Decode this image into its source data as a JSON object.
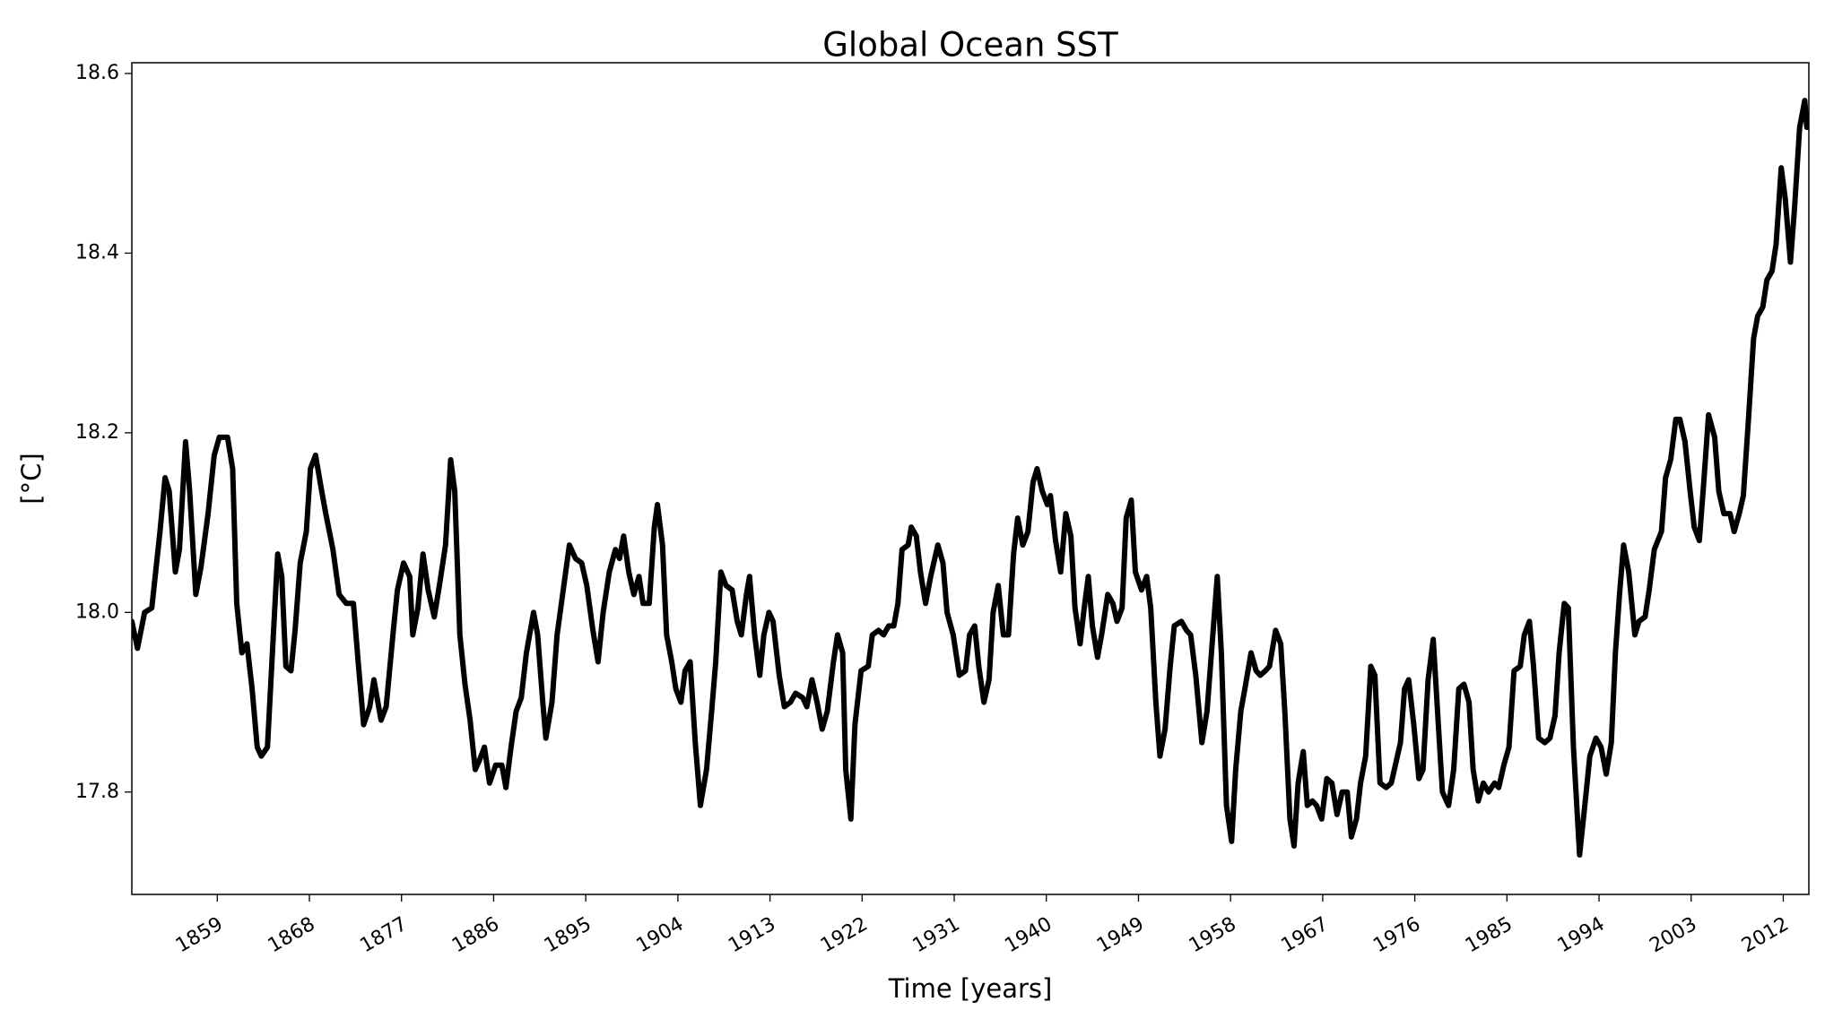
{
  "chart_data": {
    "type": "line",
    "title": "Global Ocean SST",
    "xlabel": "Time [years]",
    "ylabel": "[°C]",
    "color": "#000000",
    "xlim": [
      1850.65,
      2014.5
    ],
    "ylim": [
      17.686,
      18.612
    ],
    "xticks": [
      1859,
      1868,
      1877,
      1886,
      1895,
      1904,
      1913,
      1922,
      1931,
      1940,
      1949,
      1958,
      1967,
      1976,
      1985,
      1994,
      2003,
      2012
    ],
    "yticks": [
      17.8,
      {
        "value": 18,
        "label": "18.0"
      },
      18.2,
      18.4,
      18.6
    ],
    "x": [
      1850.65,
      1851.2,
      1851.9,
      1852.6,
      1853.4,
      1853.9,
      1854.3,
      1854.9,
      1855.3,
      1855.9,
      1856.3,
      1856.9,
      1857.4,
      1858.1,
      1858.7,
      1859.2,
      1860.0,
      1860.5,
      1860.9,
      1861.4,
      1861.9,
      1862.4,
      1862.9,
      1863.3,
      1863.9,
      1864.5,
      1864.9,
      1865.3,
      1865.7,
      1866.2,
      1866.6,
      1867.1,
      1867.7,
      1868.1,
      1868.6,
      1869.2,
      1869.6,
      1870.3,
      1870.9,
      1871.6,
      1872.3,
      1872.8,
      1873.3,
      1873.9,
      1874.3,
      1875.0,
      1875.5,
      1876.2,
      1876.6,
      1877.2,
      1877.8,
      1878.1,
      1878.6,
      1879.1,
      1879.6,
      1880.2,
      1880.7,
      1881.3,
      1881.8,
      1882.2,
      1882.7,
      1883.2,
      1883.7,
      1884.2,
      1884.6,
      1885.1,
      1885.6,
      1886.2,
      1886.8,
      1887.2,
      1887.7,
      1888.2,
      1888.7,
      1889.2,
      1889.9,
      1890.3,
      1890.8,
      1891.1,
      1891.7,
      1892.2,
      1892.8,
      1893.4,
      1894.0,
      1894.6,
      1895.1,
      1895.7,
      1896.2,
      1896.7,
      1897.3,
      1897.9,
      1898.3,
      1898.7,
      1899.2,
      1899.7,
      1900.2,
      1900.6,
      1901.2,
      1901.7,
      1902.0,
      1902.5,
      1902.9,
      1903.4,
      1903.8,
      1904.3,
      1904.7,
      1905.2,
      1905.7,
      1906.2,
      1906.8,
      1907.3,
      1907.7,
      1908.2,
      1908.7,
      1909.3,
      1909.8,
      1910.2,
      1910.7,
      1911.0,
      1911.5,
      1912.0,
      1912.4,
      1912.9,
      1913.3,
      1913.9,
      1914.4,
      1915.0,
      1915.5,
      1916.2,
      1916.6,
      1917.1,
      1917.6,
      1918.1,
      1918.6,
      1919.2,
      1919.6,
      1920.1,
      1920.4,
      1920.9,
      1921.3,
      1921.9,
      1922.6,
      1923.0,
      1923.6,
      1924.1,
      1924.6,
      1925.1,
      1925.5,
      1925.9,
      1926.5,
      1926.8,
      1927.3,
      1927.7,
      1928.2,
      1928.7,
      1929.4,
      1929.9,
      1930.3,
      1930.9,
      1931.5,
      1932.1,
      1932.5,
      1933.0,
      1933.4,
      1933.9,
      1934.4,
      1934.8,
      1935.3,
      1935.8,
      1936.3,
      1936.8,
      1937.2,
      1937.7,
      1938.2,
      1938.7,
      1939.1,
      1939.6,
      1940.1,
      1940.4,
      1940.9,
      1941.4,
      1941.9,
      1942.4,
      1942.8,
      1943.3,
      1943.7,
      1944.1,
      1944.5,
      1945.0,
      1945.4,
      1946.0,
      1946.5,
      1946.9,
      1947.4,
      1947.8,
      1948.3,
      1948.7,
      1949.3,
      1949.8,
      1950.2,
      1950.7,
      1951.1,
      1951.6,
      1952.1,
      1952.5,
      1953.2,
      1953.7,
      1954.1,
      1954.6,
      1955.2,
      1955.7,
      1956.2,
      1956.7,
      1957.1,
      1957.6,
      1958.1,
      1958.5,
      1959.0,
      1959.4,
      1960.0,
      1960.5,
      1960.9,
      1961.4,
      1961.8,
      1962.4,
      1962.9,
      1963.3,
      1963.8,
      1964.2,
      1964.6,
      1965.1,
      1965.5,
      1966.0,
      1966.4,
      1966.9,
      1967.4,
      1967.9,
      1968.4,
      1968.9,
      1969.4,
      1969.8,
      1970.3,
      1970.7,
      1971.2,
      1971.7,
      1972.1,
      1972.6,
      1973.2,
      1973.7,
      1974.2,
      1974.6,
      1975.0,
      1975.4,
      1975.9,
      1976.4,
      1976.8,
      1977.3,
      1977.8,
      1978.3,
      1978.7,
      1979.3,
      1979.8,
      1980.3,
      1980.8,
      1981.3,
      1981.7,
      1982.2,
      1982.7,
      1983.2,
      1983.8,
      1984.2,
      1984.7,
      1985.2,
      1985.7,
      1986.3,
      1986.7,
      1987.2,
      1987.6,
      1988.1,
      1988.7,
      1989.2,
      1989.7,
      1990.1,
      1990.6,
      1991.0,
      1991.5,
      1992.1,
      1992.7,
      1993.1,
      1993.7,
      1994.2,
      1994.7,
      1995.2,
      1995.6,
      1996.0,
      1996.4,
      1996.9,
      1997.5,
      1997.9,
      1998.5,
      1998.9,
      1999.4,
      2000.1,
      2000.5,
      2001.0,
      2001.5,
      2001.9,
      2002.4,
      2002.9,
      2003.3,
      2003.8,
      2004.2,
      2004.7,
      2005.3,
      2005.7,
      2006.2,
      2006.8,
      2007.2,
      2007.7,
      2008.1,
      2008.6,
      2009.1,
      2009.5,
      2010.0,
      2010.4,
      2010.9,
      2011.3,
      2011.8,
      2012.2,
      2012.7,
      2013.1,
      2013.6,
      2014.1,
      2014.3
    ],
    "values": [
      17.99,
      17.96,
      18.0,
      18.005,
      18.09,
      18.15,
      18.135,
      18.045,
      18.07,
      18.19,
      18.135,
      18.02,
      18.05,
      18.11,
      18.175,
      18.195,
      18.195,
      18.16,
      18.01,
      17.955,
      17.965,
      17.915,
      17.85,
      17.84,
      17.85,
      17.98,
      18.065,
      18.04,
      17.94,
      17.935,
      17.98,
      18.055,
      18.09,
      18.16,
      18.175,
      18.135,
      18.11,
      18.07,
      18.02,
      18.01,
      18.01,
      17.94,
      17.875,
      17.895,
      17.925,
      17.88,
      17.895,
      17.98,
      18.025,
      18.055,
      18.04,
      17.975,
      18.005,
      18.065,
      18.025,
      17.995,
      18.03,
      18.075,
      18.17,
      18.135,
      17.975,
      17.92,
      17.88,
      17.825,
      17.835,
      17.85,
      17.81,
      17.83,
      17.83,
      17.805,
      17.85,
      17.89,
      17.905,
      17.955,
      18.0,
      17.975,
      17.9,
      17.86,
      17.9,
      17.975,
      18.025,
      18.075,
      18.06,
      18.055,
      18.03,
      17.98,
      17.945,
      18.0,
      18.045,
      18.07,
      18.06,
      18.085,
      18.045,
      18.02,
      18.04,
      18.01,
      18.01,
      18.095,
      18.12,
      18.075,
      17.975,
      17.945,
      17.915,
      17.9,
      17.935,
      17.945,
      17.855,
      17.785,
      17.825,
      17.89,
      17.945,
      18.045,
      18.03,
      18.025,
      17.99,
      17.975,
      18.02,
      18.04,
      17.975,
      17.93,
      17.975,
      18.0,
      17.99,
      17.93,
      17.895,
      17.9,
      17.91,
      17.905,
      17.895,
      17.925,
      17.9,
      17.87,
      17.89,
      17.945,
      17.975,
      17.955,
      17.825,
      17.77,
      17.875,
      17.935,
      17.94,
      17.975,
      17.98,
      17.975,
      17.985,
      17.985,
      18.01,
      18.07,
      18.075,
      18.095,
      18.085,
      18.045,
      18.01,
      18.04,
      18.075,
      18.055,
      18.0,
      17.975,
      17.93,
      17.935,
      17.975,
      17.985,
      17.94,
      17.9,
      17.925,
      18.0,
      18.03,
      17.975,
      17.975,
      18.065,
      18.105,
      18.075,
      18.09,
      18.145,
      18.16,
      18.135,
      18.12,
      18.13,
      18.08,
      18.045,
      18.11,
      18.085,
      18.005,
      17.965,
      18.005,
      18.04,
      17.985,
      17.95,
      17.975,
      18.02,
      18.01,
      17.99,
      18.005,
      18.105,
      18.125,
      18.045,
      18.025,
      18.04,
      18.005,
      17.9,
      17.84,
      17.87,
      17.94,
      17.985,
      17.99,
      17.98,
      17.975,
      17.93,
      17.855,
      17.89,
      17.965,
      18.04,
      17.955,
      17.785,
      17.745,
      17.825,
      17.89,
      17.915,
      17.955,
      17.935,
      17.93,
      17.935,
      17.94,
      17.98,
      17.965,
      17.89,
      17.77,
      17.74,
      17.81,
      17.845,
      17.785,
      17.79,
      17.785,
      17.77,
      17.815,
      17.81,
      17.775,
      17.8,
      17.8,
      17.75,
      17.77,
      17.81,
      17.84,
      17.94,
      17.93,
      17.81,
      17.805,
      17.81,
      17.835,
      17.855,
      17.915,
      17.925,
      17.875,
      17.815,
      17.825,
      17.925,
      17.97,
      17.875,
      17.8,
      17.785,
      17.825,
      17.915,
      17.92,
      17.9,
      17.825,
      17.79,
      17.81,
      17.8,
      17.81,
      17.805,
      17.83,
      17.85,
      17.935,
      17.94,
      17.975,
      17.99,
      17.94,
      17.86,
      17.855,
      17.86,
      17.885,
      17.955,
      18.01,
      18.005,
      17.85,
      17.73,
      17.795,
      17.84,
      17.86,
      17.85,
      17.82,
      17.855,
      17.955,
      18.02,
      18.075,
      18.045,
      17.975,
      17.99,
      17.995,
      18.025,
      18.07,
      18.09,
      18.15,
      18.17,
      18.215,
      18.215,
      18.19,
      18.135,
      18.095,
      18.08,
      18.14,
      18.22,
      18.195,
      18.135,
      18.11,
      18.11,
      18.09,
      18.11,
      18.13,
      18.215,
      18.305,
      18.33,
      18.34,
      18.37,
      18.38,
      18.41,
      18.495,
      18.46,
      18.39,
      18.45,
      18.54,
      18.57,
      18.54
    ]
  }
}
